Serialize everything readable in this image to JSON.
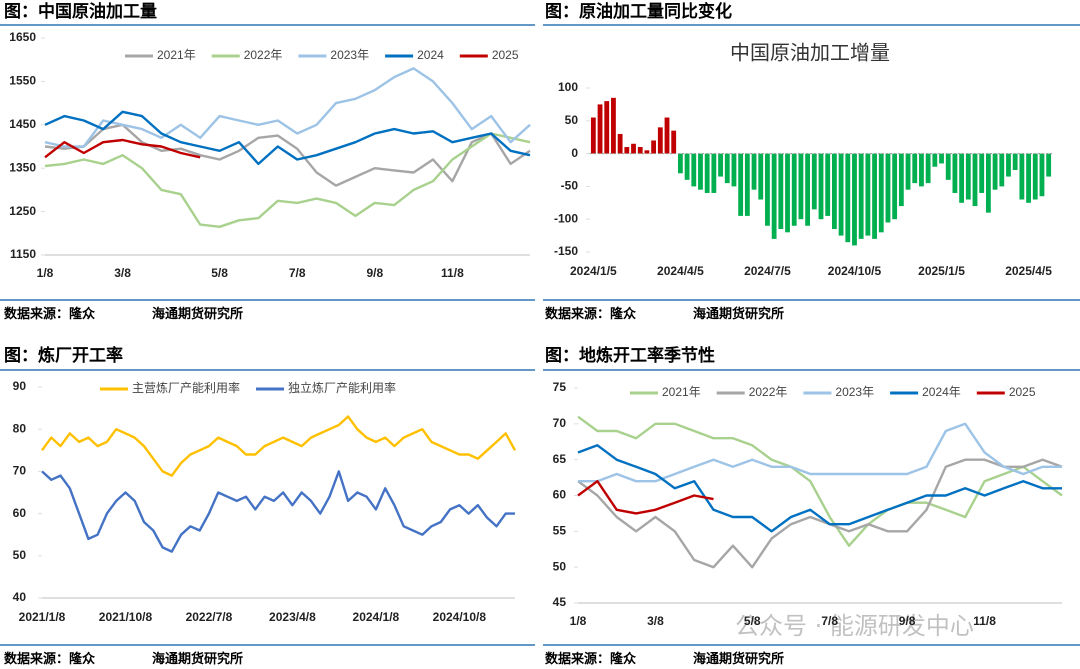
{
  "panels": [
    {
      "heading": "图：中国原油加工量",
      "source": "数据来源：隆众",
      "institute": "海通期货研究所"
    },
    {
      "heading": "图：原油加工量同比变化",
      "source": "数据来源：隆众",
      "institute": "海通期货研究所"
    },
    {
      "heading": "图：炼厂开工率",
      "source": "数据来源：隆众",
      "institute": "海通期货研究所"
    },
    {
      "heading": "图：地炼开工率季节性",
      "source": "数据来源：隆众",
      "institute": "海通期货研究所"
    }
  ],
  "watermark": "公众号 · 能源研发中心",
  "chart_data": [
    {
      "type": "line",
      "categories": [
        "1/8",
        null,
        null,
        null,
        "3/8",
        null,
        null,
        null,
        null,
        "5/8",
        null,
        null,
        null,
        "7/8",
        null,
        null,
        null,
        "9/8",
        null,
        null,
        null,
        "11/8",
        null,
        null,
        null,
        null
      ],
      "ylim": [
        1150,
        1650
      ],
      "yticks": [
        1150,
        1250,
        1350,
        1450,
        1550,
        1650
      ],
      "series": [
        {
          "name": "2021年",
          "color": "#a6a6a6",
          "values": [
            1400,
            1395,
            1400,
            1440,
            1450,
            1410,
            1390,
            1395,
            1380,
            1370,
            1390,
            1420,
            1425,
            1395,
            1340,
            1310,
            1330,
            1350,
            1345,
            1340,
            1370,
            1320,
            1410,
            1430,
            1360,
            1390
          ]
        },
        {
          "name": "2022年",
          "color": "#a9d18e",
          "values": [
            1355,
            1360,
            1370,
            1360,
            1380,
            1350,
            1300,
            1290,
            1220,
            1215,
            1230,
            1235,
            1275,
            1270,
            1280,
            1270,
            1240,
            1270,
            1265,
            1300,
            1320,
            1370,
            1400,
            1430,
            1420,
            1410
          ]
        },
        {
          "name": "2023年",
          "color": "#9dc3e6",
          "values": [
            1410,
            1400,
            1400,
            1460,
            1450,
            1440,
            1420,
            1450,
            1420,
            1470,
            1460,
            1450,
            1460,
            1430,
            1450,
            1500,
            1510,
            1530,
            1560,
            1580,
            1550,
            1500,
            1440,
            1470,
            1410,
            1450
          ]
        },
        {
          "name": "2024",
          "color": "#0070c0",
          "values": [
            1450,
            1470,
            1460,
            1440,
            1480,
            1470,
            1430,
            1410,
            1400,
            1390,
            1410,
            1360,
            1400,
            1370,
            1380,
            1395,
            1410,
            1430,
            1440,
            1430,
            1435,
            1410,
            1420,
            1430,
            1390,
            1380
          ]
        },
        {
          "name": "2025",
          "color": "#c00000",
          "values": [
            1375,
            1410,
            1385,
            1410,
            1415,
            1405,
            1400,
            1385,
            1375,
            null,
            null,
            null,
            null,
            null,
            null,
            null,
            null,
            null,
            null,
            null,
            null,
            null,
            null,
            null,
            null,
            null
          ]
        }
      ]
    },
    {
      "type": "bar",
      "title": "中国原油加工增量",
      "categories": [
        "2024/1/5",
        null,
        null,
        null,
        null,
        null,
        null,
        null,
        null,
        null,
        null,
        null,
        null,
        "2024/4/5",
        null,
        null,
        null,
        null,
        null,
        null,
        null,
        null,
        null,
        null,
        null,
        null,
        "2024/7/5",
        null,
        null,
        null,
        null,
        null,
        null,
        null,
        null,
        null,
        null,
        null,
        null,
        "2024/10/5",
        null,
        null,
        null,
        null,
        null,
        null,
        null,
        null,
        null,
        null,
        null,
        null,
        "2025/1/5",
        null,
        null,
        null,
        null,
        null,
        null,
        null,
        null,
        null,
        null,
        null,
        null,
        "2025/4/5",
        null,
        null,
        null
      ],
      "values": [
        55,
        75,
        80,
        85,
        30,
        10,
        15,
        10,
        5,
        20,
        40,
        55,
        35,
        -30,
        -40,
        -50,
        -55,
        -60,
        -60,
        -35,
        -45,
        -50,
        -95,
        -95,
        -55,
        -70,
        -110,
        -130,
        -115,
        -120,
        -110,
        -100,
        -110,
        -85,
        -100,
        -95,
        -115,
        -125,
        -135,
        -140,
        -130,
        -125,
        -130,
        -120,
        -105,
        -100,
        -80,
        -55,
        -45,
        -50,
        -45,
        -20,
        -15,
        -40,
        -60,
        -75,
        -70,
        -80,
        -60,
        -90,
        -55,
        -50,
        -35,
        -25,
        -70,
        -75,
        -70,
        -65,
        -35
      ],
      "positive_color": "#c00000",
      "negative_color": "#00b050",
      "ylim": [
        -150,
        100
      ],
      "yticks": [
        -150,
        -100,
        -50,
        0,
        50,
        100
      ]
    },
    {
      "type": "line",
      "categories": [
        "2021/1/8",
        null,
        null,
        null,
        null,
        null,
        null,
        null,
        null,
        "2021/10/8",
        null,
        null,
        null,
        null,
        null,
        null,
        null,
        null,
        "2022/7/8",
        null,
        null,
        null,
        null,
        null,
        null,
        null,
        null,
        "2023/4/8",
        null,
        null,
        null,
        null,
        null,
        null,
        null,
        null,
        "2024/1/8",
        null,
        null,
        null,
        null,
        null,
        null,
        null,
        null,
        "2024/10/8",
        null,
        null,
        null,
        null,
        null,
        null
      ],
      "ylim": [
        40,
        90
      ],
      "yticks": [
        40,
        50,
        60,
        70,
        80,
        90
      ],
      "series": [
        {
          "name": "主营炼厂产能利用率",
          "color": "#ffc000",
          "values": [
            75,
            78,
            76,
            79,
            77,
            78,
            76,
            77,
            80,
            79,
            78,
            76,
            73,
            70,
            69,
            72,
            74,
            75,
            76,
            78,
            77,
            76,
            74,
            74,
            76,
            77,
            78,
            77,
            76,
            78,
            79,
            80,
            81,
            83,
            80,
            78,
            77,
            78,
            76,
            78,
            79,
            80,
            77,
            76,
            75,
            74,
            74,
            73,
            75,
            77,
            79,
            75
          ]
        },
        {
          "name": "独立炼厂产能利用率",
          "color": "#4472c4",
          "values": [
            70,
            68,
            69,
            66,
            60,
            54,
            55,
            60,
            63,
            65,
            63,
            58,
            56,
            52,
            51,
            55,
            57,
            56,
            60,
            65,
            64,
            63,
            64,
            61,
            64,
            63,
            65,
            62,
            65,
            63,
            60,
            64,
            70,
            63,
            65,
            64,
            61,
            66,
            62,
            57,
            56,
            55,
            57,
            58,
            61,
            62,
            60,
            62,
            59,
            57,
            60,
            60
          ]
        }
      ]
    },
    {
      "type": "line",
      "categories": [
        "1/8",
        null,
        null,
        null,
        "3/8",
        null,
        null,
        null,
        null,
        "5/8",
        null,
        null,
        null,
        "7/8",
        null,
        null,
        null,
        "9/8",
        null,
        null,
        null,
        "11/8",
        null,
        null,
        null,
        null
      ],
      "ylim": [
        45,
        75
      ],
      "yticks": [
        45,
        50,
        55,
        60,
        65,
        70,
        75
      ],
      "series": [
        {
          "name": "2021年",
          "color": "#a9d18e",
          "values": [
            71,
            69,
            69,
            68,
            70,
            70,
            69,
            68,
            68,
            67,
            65,
            64,
            62,
            57,
            53,
            56,
            58,
            59,
            59,
            58,
            57,
            62,
            63,
            64,
            62,
            60
          ]
        },
        {
          "name": "2022年",
          "color": "#a6a6a6",
          "values": [
            62,
            60,
            57,
            55,
            57,
            55,
            51,
            50,
            53,
            50,
            54,
            56,
            57,
            56,
            55,
            56,
            55,
            55,
            58,
            64,
            65,
            65,
            64,
            64,
            65,
            64
          ]
        },
        {
          "name": "2023年",
          "color": "#9dc3e6",
          "values": [
            62,
            62,
            63,
            62,
            62,
            63,
            64,
            65,
            64,
            65,
            64,
            64,
            63,
            63,
            63,
            63,
            63,
            63,
            64,
            69,
            70,
            66,
            64,
            63,
            64,
            64
          ]
        },
        {
          "name": "2024年",
          "color": "#0070c0",
          "values": [
            66,
            67,
            65,
            64,
            63,
            61,
            62,
            58,
            57,
            57,
            55,
            57,
            58,
            56,
            56,
            57,
            58,
            59,
            60,
            60,
            61,
            60,
            61,
            62,
            61,
            61
          ]
        },
        {
          "name": "2025",
          "color": "#c00000",
          "values": [
            60,
            62,
            58,
            57.5,
            58,
            59,
            60,
            59.5,
            null,
            null,
            null,
            null,
            null,
            null,
            null,
            null,
            null,
            null,
            null,
            null,
            null,
            null,
            null,
            null,
            null,
            null
          ]
        }
      ]
    }
  ]
}
